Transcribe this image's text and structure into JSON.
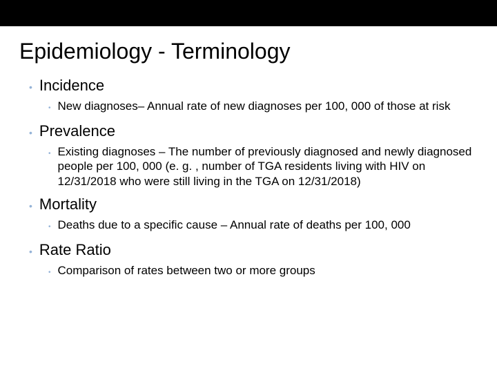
{
  "colors": {
    "topbar_bg": "#000000",
    "page_bg": "#ffffff",
    "text": "#000000",
    "bullet": "#95b3d7"
  },
  "typography": {
    "title_fontsize": 32,
    "term_fontsize": 22,
    "def_fontsize": 17,
    "font_family": "Arial"
  },
  "title": "Epidemiology - Terminology",
  "terms": [
    {
      "label": "Incidence",
      "definition": "New diagnoses– Annual rate of new diagnoses per 100, 000 of those at risk"
    },
    {
      "label": "Prevalence",
      "definition": "Existing diagnoses – The number of previously diagnosed and newly diagnosed people per 100, 000 (e. g. , number of TGA residents living with HIV on 12/31/2018 who were still living in the TGA on 12/31/2018)"
    },
    {
      "label": "Mortality",
      "definition": "Deaths due to a specific cause – Annual rate of deaths per 100, 000"
    },
    {
      "label": "Rate Ratio",
      "definition": "Comparison of rates between two or more groups"
    }
  ]
}
